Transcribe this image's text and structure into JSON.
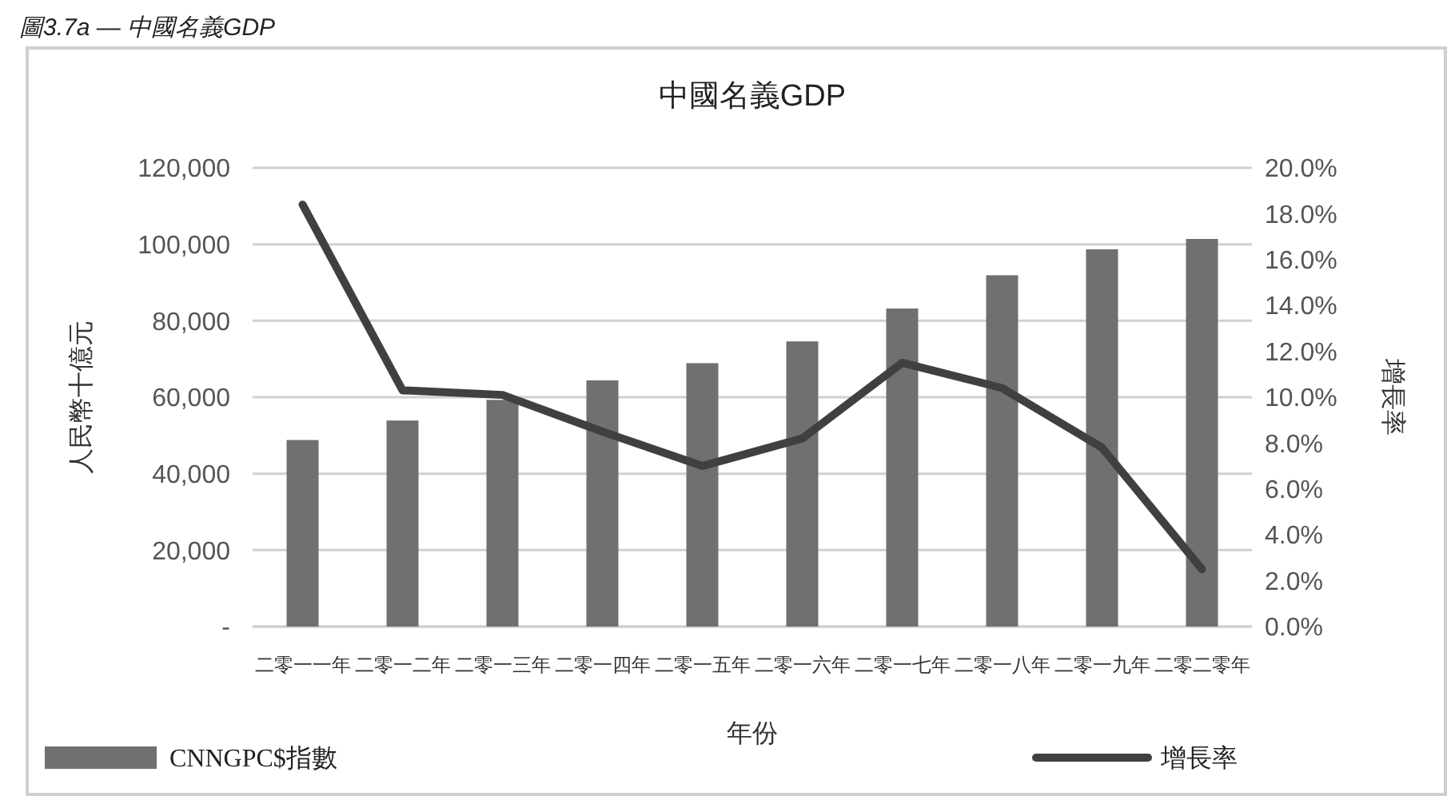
{
  "chart_data": {
    "type": "bar",
    "title": "中國名義GDP",
    "annotations": [
      "圖3.7a — 中國名義GDP"
    ],
    "xlabel": "年份",
    "ylabel": "人民幣十億元",
    "y2label": "增長率",
    "categories": [
      "二零一一年",
      "二零一二年",
      "二零一三年",
      "二零一四年",
      "二零一五年",
      "二零一六年",
      "二零一七年",
      "二零一八年",
      "二零一九年",
      "二零二零年"
    ],
    "series": [
      {
        "name": "CNNGPC$指數",
        "color": "#707070",
        "values": [
          48800,
          53900,
          59300,
          64400,
          68900,
          74600,
          83200,
          91900,
          98700,
          101400
        ]
      },
      {
        "name": "增長率",
        "type": "line",
        "axis": "y2",
        "color": "#404040",
        "values": [
          18.4,
          10.3,
          10.1,
          8.5,
          7.0,
          8.2,
          11.5,
          10.4,
          7.8,
          2.5
        ]
      }
    ],
    "ylim": [
      0,
      120000
    ],
    "yticks": [
      {
        "value": 0,
        "label": "-"
      },
      {
        "value": 20000,
        "label": "20,000"
      },
      {
        "value": 40000,
        "label": "40,000"
      },
      {
        "value": 60000,
        "label": "60,000"
      },
      {
        "value": 80000,
        "label": "80,000"
      },
      {
        "value": 100000,
        "label": "100,000"
      },
      {
        "value": 120000,
        "label": "120,000"
      }
    ],
    "y2lim": [
      0,
      20
    ],
    "y2ticks": [
      {
        "value": 0,
        "label": "0.0%"
      },
      {
        "value": 2,
        "label": "2.0%"
      },
      {
        "value": 4,
        "label": "4.0%"
      },
      {
        "value": 6,
        "label": "6.0%"
      },
      {
        "value": 8,
        "label": "8.0%"
      },
      {
        "value": 10,
        "label": "10.0%"
      },
      {
        "value": 12,
        "label": "12.0%"
      },
      {
        "value": 14,
        "label": "14.0%"
      },
      {
        "value": 16,
        "label": "16.0%"
      },
      {
        "value": 18,
        "label": "18.0%"
      },
      {
        "value": 20,
        "label": "20.0%"
      }
    ],
    "grid": "y",
    "legend": "bottom",
    "line_style": "solid",
    "marker": "none"
  }
}
